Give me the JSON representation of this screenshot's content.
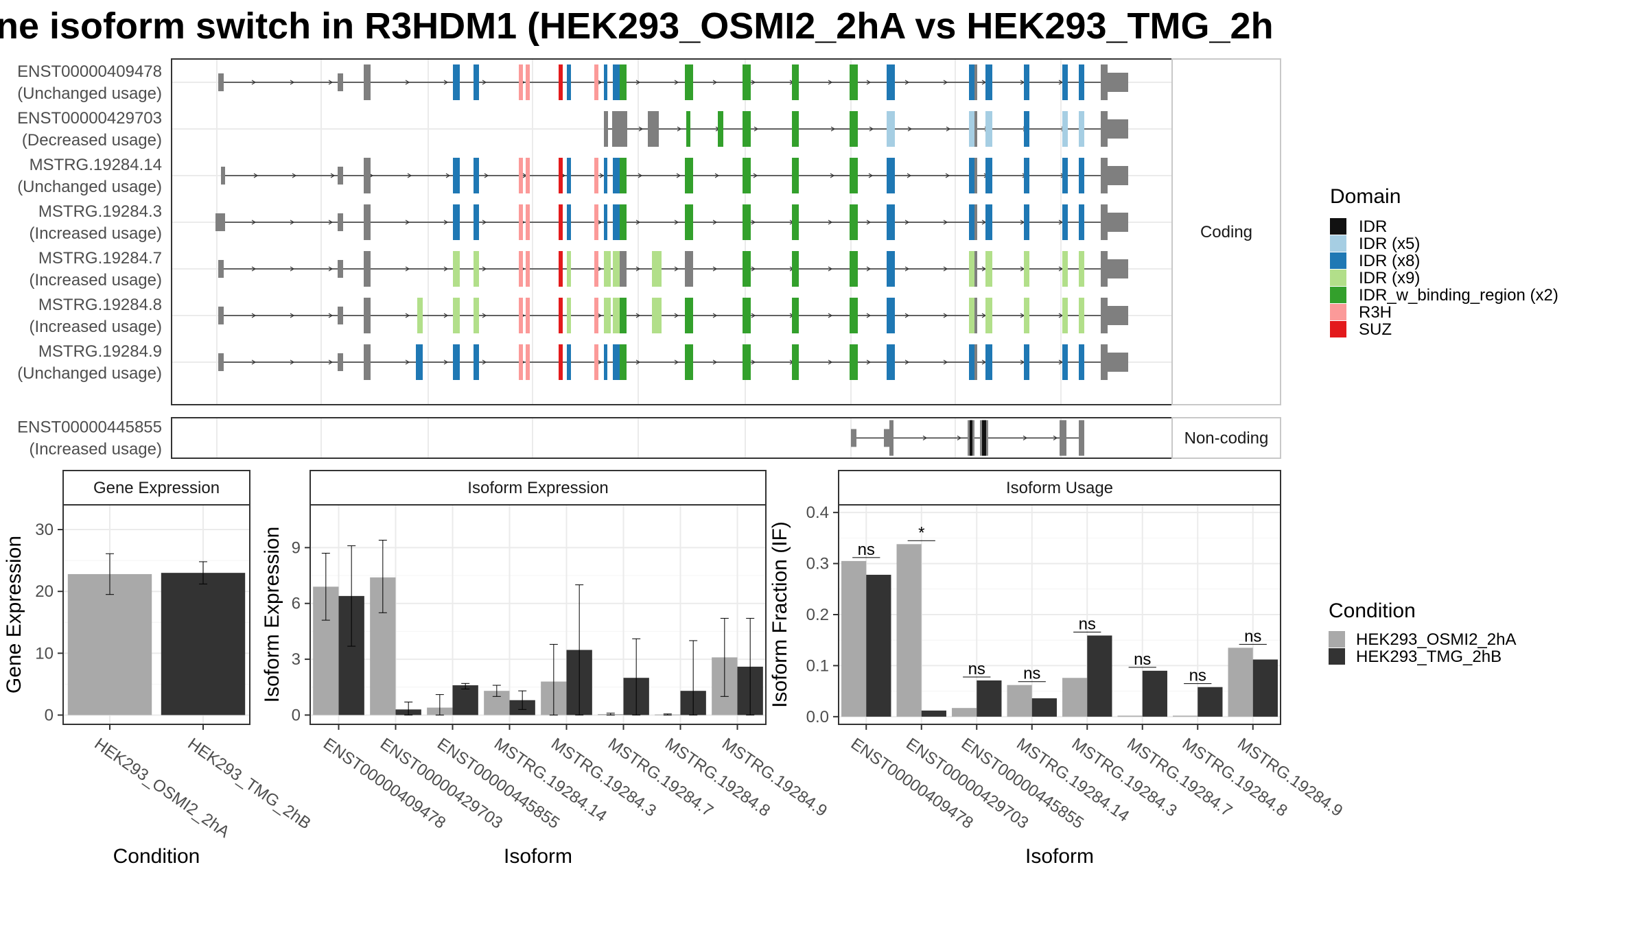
{
  "title": "ne isoform switch in R3HDM1 (HEK293_OSMI2_2hA vs HEK293_TMG_2h",
  "colors": {
    "osmi": "#a9a9a9",
    "tmg": "#333333",
    "intron": "#333333",
    "utr": "#7f7f7f",
    "domains": {
      "IDR": "#111111",
      "IDR (x5)": "#a6cee3",
      "IDR (x8)": "#1f78b4",
      "IDR (x9)": "#b2df8a",
      "IDR_w_binding_region (x2)": "#33a02c",
      "R3H": "#fb9a99",
      "SUZ": "#e31a1c"
    }
  },
  "strips": {
    "coding": "Coding",
    "noncoding": "Non-coding",
    "gene": "Gene Expression",
    "isoform_expr": "Isoform Expression",
    "isoform_usage": "Isoform Usage"
  },
  "transcripts": [
    {
      "id": "ENST00000409478",
      "status": "(Unchanged usage)"
    },
    {
      "id": "ENST00000429703",
      "status": "(Decreased usage)"
    },
    {
      "id": "MSTRG.19284.14",
      "status": "(Unchanged usage)"
    },
    {
      "id": "MSTRG.19284.3",
      "status": "(Increased usage)"
    },
    {
      "id": "MSTRG.19284.7",
      "status": "(Increased usage)"
    },
    {
      "id": "MSTRG.19284.8",
      "status": "(Increased usage)"
    },
    {
      "id": "MSTRG.19284.9",
      "status": "(Unchanged usage)"
    },
    {
      "id": "ENST00000445855",
      "status": "(Increased usage)"
    }
  ],
  "legend_domain": {
    "title": "Domain",
    "items": [
      "IDR",
      "IDR (x5)",
      "IDR (x8)",
      "IDR (x9)",
      "IDR_w_binding_region (x2)",
      "R3H",
      "SUZ"
    ]
  },
  "legend_condition": {
    "title": "Condition",
    "items": [
      "HEK293_OSMI2_2hA",
      "HEK293_TMG_2hB"
    ]
  },
  "chart_data": [
    {
      "type": "bar",
      "title": "Gene Expression",
      "xlabel": "Condition",
      "ylabel": "Gene Expression",
      "ylim": [
        -1.5,
        34
      ],
      "yticks": [
        0,
        10,
        20,
        30
      ],
      "categories": [
        "HEK293_OSMI2_2hA",
        "HEK293_TMG_2hB"
      ],
      "values": [
        22.8,
        23.0
      ],
      "err_low": [
        19.5,
        21.2
      ],
      "err_high": [
        26.1,
        24.8
      ]
    },
    {
      "type": "bar",
      "title": "Isoform Expression",
      "xlabel": "Isoform",
      "ylabel": "Isoform Expression",
      "ylim": [
        -0.5,
        11.3
      ],
      "yticks": [
        0,
        3,
        6,
        9
      ],
      "categories": [
        "ENST00000409478",
        "ENST00000429703",
        "ENST00000445855",
        "MSTRG.19284.14",
        "MSTRG.19284.3",
        "MSTRG.19284.7",
        "MSTRG.19284.8",
        "MSTRG.19284.9"
      ],
      "series": [
        {
          "name": "HEK293_OSMI2_2hA",
          "values": [
            6.9,
            7.4,
            0.4,
            1.3,
            1.8,
            0.05,
            0.03,
            3.1
          ],
          "err_low": [
            5.1,
            5.5,
            0.0,
            1.0,
            0.0,
            0.0,
            0.0,
            1.0
          ],
          "err_high": [
            8.7,
            9.4,
            1.1,
            1.6,
            3.8,
            0.1,
            0.06,
            5.2
          ]
        },
        {
          "name": "HEK293_TMG_2hB",
          "values": [
            6.4,
            0.3,
            1.6,
            0.8,
            3.5,
            2.0,
            1.3,
            2.6
          ],
          "err_low": [
            3.7,
            0.0,
            1.4,
            0.3,
            0.0,
            0.0,
            0.0,
            0.0
          ],
          "err_high": [
            9.1,
            0.7,
            1.7,
            1.3,
            7.0,
            4.1,
            4.0,
            5.2
          ]
        }
      ]
    },
    {
      "type": "bar",
      "title": "Isoform Usage",
      "xlabel": "Isoform",
      "ylabel": "Isoform Fraction (IF)",
      "ylim": [
        -0.015,
        0.415
      ],
      "yticks": [
        0.0,
        0.1,
        0.2,
        0.3,
        0.4
      ],
      "ytick_labels": [
        "0.0",
        "0.1",
        "0.2",
        "0.3",
        "0.4"
      ],
      "categories": [
        "ENST00000409478",
        "ENST00000429703",
        "ENST00000445855",
        "MSTRG.19284.14",
        "MSTRG.19284.3",
        "MSTRG.19284.7",
        "MSTRG.19284.8",
        "MSTRG.19284.9"
      ],
      "series": [
        {
          "name": "HEK293_OSMI2_2hA",
          "values": [
            0.305,
            0.338,
            0.017,
            0.062,
            0.076,
            0.002,
            0.002,
            0.135
          ]
        },
        {
          "name": "HEK293_TMG_2hB",
          "values": [
            0.278,
            0.012,
            0.071,
            0.036,
            0.159,
            0.09,
            0.058,
            0.112
          ]
        }
      ],
      "significance": [
        "ns",
        "*",
        "ns",
        "ns",
        "ns",
        "ns",
        "ns",
        "ns"
      ]
    }
  ]
}
